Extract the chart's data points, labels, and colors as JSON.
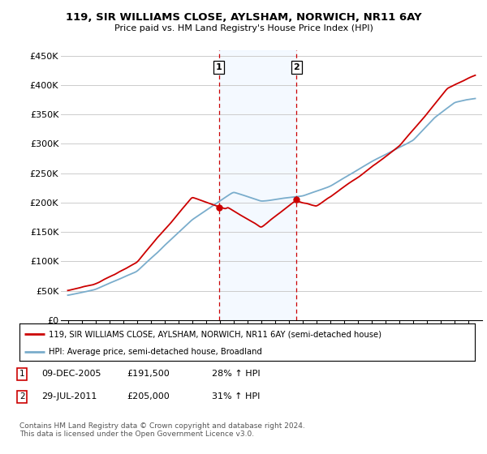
{
  "title": "119, SIR WILLIAMS CLOSE, AYLSHAM, NORWICH, NR11 6AY",
  "subtitle": "Price paid vs. HM Land Registry's House Price Index (HPI)",
  "ylabel_ticks": [
    "£0",
    "£50K",
    "£100K",
    "£150K",
    "£200K",
    "£250K",
    "£300K",
    "£350K",
    "£400K",
    "£450K"
  ],
  "ytick_values": [
    0,
    50000,
    100000,
    150000,
    200000,
    250000,
    300000,
    350000,
    400000,
    450000
  ],
  "ylim": [
    0,
    460000
  ],
  "xlim_start": 1994.5,
  "xlim_end": 2025.0,
  "red_line_color": "#cc0000",
  "blue_line_color": "#7aadcc",
  "marker_color": "#cc0000",
  "vline_color": "#cc0000",
  "shading_color": "#ddeeff",
  "transaction1_date": 2005.94,
  "transaction1_value": 191500,
  "transaction2_date": 2011.57,
  "transaction2_value": 205000,
  "legend_line1": "119, SIR WILLIAMS CLOSE, AYLSHAM, NORWICH, NR11 6AY (semi-detached house)",
  "legend_line2": "HPI: Average price, semi-detached house, Broadland",
  "copyright_text": "Contains HM Land Registry data © Crown copyright and database right 2024.\nThis data is licensed under the Open Government Licence v3.0.",
  "background_color": "#ffffff",
  "grid_color": "#cccccc"
}
